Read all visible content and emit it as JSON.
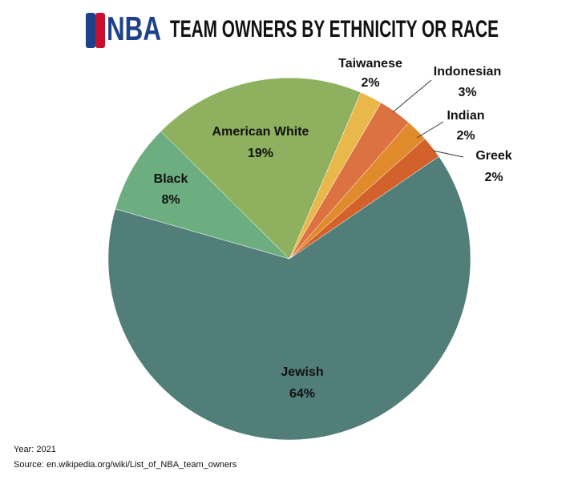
{
  "chart_data": {
    "type": "pie",
    "logo_text": "NBA",
    "title": "TEAM OWNERS BY ETHNICITY OR RACE",
    "categories": [
      "Taiwanese",
      "Indonesian",
      "Indian",
      "Greek",
      "Jewish",
      "Black",
      "American White"
    ],
    "values": [
      2,
      3,
      2,
      2,
      64,
      8,
      19
    ],
    "value_labels": [
      "2%",
      "3%",
      "2%",
      "2%",
      "64%",
      "8%",
      "19%"
    ],
    "colors": [
      "#e8b94a",
      "#dc7141",
      "#e08a2c",
      "#d2612b",
      "#517e79",
      "#6dae80",
      "#8eb05f"
    ],
    "year_note": "Year: 2021",
    "source": "Source: en.wikipedia.org/wiki/List_of_NBA_team_owners"
  }
}
